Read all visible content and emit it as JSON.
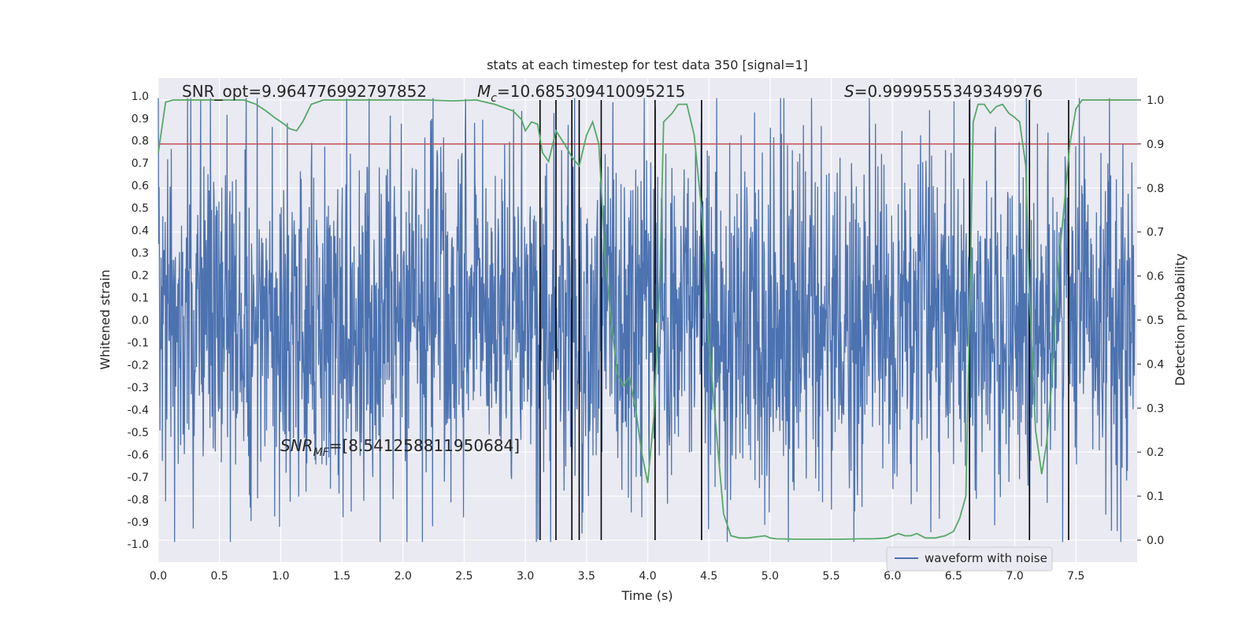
{
  "chart_data": {
    "type": "line",
    "title": "stats at each timestep for test data 350 [signal=1]",
    "xlabel": "Time (s)",
    "ylabel_left": "Whitened strain",
    "ylabel_right": "Detection probability",
    "xlim": [
      0.0,
      8.0
    ],
    "ylim_left": [
      -1.08,
      1.08
    ],
    "ylim_right": [
      -0.05,
      1.05
    ],
    "x_ticks": [
      "0.0",
      "0.5",
      "1.0",
      "1.5",
      "2.0",
      "2.5",
      "3.0",
      "3.5",
      "4.0",
      "4.5",
      "5.0",
      "5.5",
      "6.0",
      "6.5",
      "7.0",
      "7.5"
    ],
    "y_left_ticks": [
      "1.0",
      "0.9",
      "0.8",
      "0.7",
      "0.6",
      "0.5",
      "0.4",
      "0.3",
      "0.2",
      "0.1",
      "0.0",
      "-0.1",
      "-0.2",
      "-0.3",
      "-0.4",
      "-0.5",
      "-0.6",
      "-0.7",
      "-0.8",
      "-0.9",
      "-1.0"
    ],
    "y_right_ticks": [
      "1.0",
      "0.9",
      "0.8",
      "0.7",
      "0.6",
      "0.5",
      "0.4",
      "0.3",
      "0.2",
      "0.1",
      "0.0"
    ],
    "threshold": {
      "value": 0.9,
      "axis": "right",
      "color": "#c44e52"
    },
    "vlines_x": [
      3.12,
      3.25,
      3.38,
      3.44,
      3.62,
      4.06,
      4.44,
      6.63,
      7.12,
      7.44
    ],
    "vline_range": [
      0.0,
      1.0
    ],
    "waveform_series": {
      "name": "waveform with noise",
      "color": "#4c72b0",
      "seed": 350,
      "samples": 2400
    },
    "probability_series": {
      "name": "Detection probability",
      "color": "#55a868",
      "x": [
        0.0,
        0.06,
        0.12,
        0.2,
        0.3,
        0.5,
        0.7,
        0.8,
        0.88,
        0.95,
        1.03,
        1.07,
        1.13,
        1.18,
        1.25,
        1.35,
        1.5,
        1.7,
        2.0,
        2.2,
        2.4,
        2.6,
        2.75,
        2.9,
        2.97,
        3.0,
        3.05,
        3.1,
        3.14,
        3.19,
        3.25,
        3.32,
        3.38,
        3.44,
        3.5,
        3.55,
        3.6,
        3.65,
        3.7,
        3.75,
        3.8,
        3.85,
        3.9,
        3.95,
        4.0,
        4.05,
        4.1,
        4.13,
        4.2,
        4.25,
        4.32,
        4.38,
        4.44,
        4.5,
        4.56,
        4.62,
        4.68,
        4.75,
        4.82,
        4.9,
        4.96,
        5.0,
        5.05,
        5.2,
        5.4,
        5.6,
        5.75,
        5.85,
        5.95,
        6.0,
        6.05,
        6.1,
        6.15,
        6.2,
        6.27,
        6.35,
        6.43,
        6.5,
        6.55,
        6.6,
        6.63,
        6.66,
        6.7,
        6.75,
        6.8,
        6.85,
        6.9,
        6.95,
        7.0,
        7.04,
        7.09,
        7.12,
        7.17,
        7.22,
        7.26,
        7.3,
        7.35,
        7.4,
        7.45,
        7.5,
        7.55,
        7.6,
        7.7,
        7.85,
        8.0
      ],
      "y": [
        0.88,
        0.995,
        1.0,
        1.0,
        1.0,
        1.0,
        1.0,
        0.99,
        0.975,
        0.96,
        0.945,
        0.935,
        0.93,
        0.95,
        0.99,
        1.0,
        1.0,
        1.0,
        1.0,
        1.0,
        0.998,
        1.0,
        0.99,
        0.975,
        0.955,
        0.93,
        0.95,
        0.945,
        0.88,
        0.86,
        0.93,
        0.9,
        0.87,
        0.85,
        0.92,
        0.95,
        0.9,
        0.65,
        0.5,
        0.38,
        0.35,
        0.37,
        0.3,
        0.2,
        0.13,
        0.28,
        0.6,
        0.95,
        0.97,
        0.99,
        0.99,
        0.92,
        0.75,
        0.45,
        0.25,
        0.06,
        0.01,
        0.005,
        0.005,
        0.008,
        0.01,
        0.005,
        0.003,
        0.002,
        0.002,
        0.002,
        0.003,
        0.003,
        0.005,
        0.01,
        0.015,
        0.01,
        0.01,
        0.015,
        0.005,
        0.005,
        0.01,
        0.02,
        0.05,
        0.1,
        0.5,
        0.95,
        0.99,
        0.99,
        0.97,
        0.985,
        0.99,
        0.97,
        0.96,
        0.95,
        0.85,
        0.55,
        0.25,
        0.15,
        0.22,
        0.35,
        0.6,
        0.75,
        0.9,
        0.98,
        1.0,
        1.0,
        1.0,
        1.0,
        1.0
      ]
    },
    "annotations": [
      {
        "text": "SNR_opt=9.964776992797852"
      },
      {
        "text_prefix": "M",
        "text_sub": "c",
        "text_suffix": "=10.685309410095215"
      },
      {
        "text_prefix": "S",
        "text_suffix": "=0.9999555349349976"
      },
      {
        "text_prefix": "SNR",
        "text_sub": "MF",
        "text_suffix": "=[8.541258811950684]"
      }
    ],
    "legend": {
      "position": "lower-right",
      "entries": [
        "waveform with noise"
      ]
    }
  }
}
